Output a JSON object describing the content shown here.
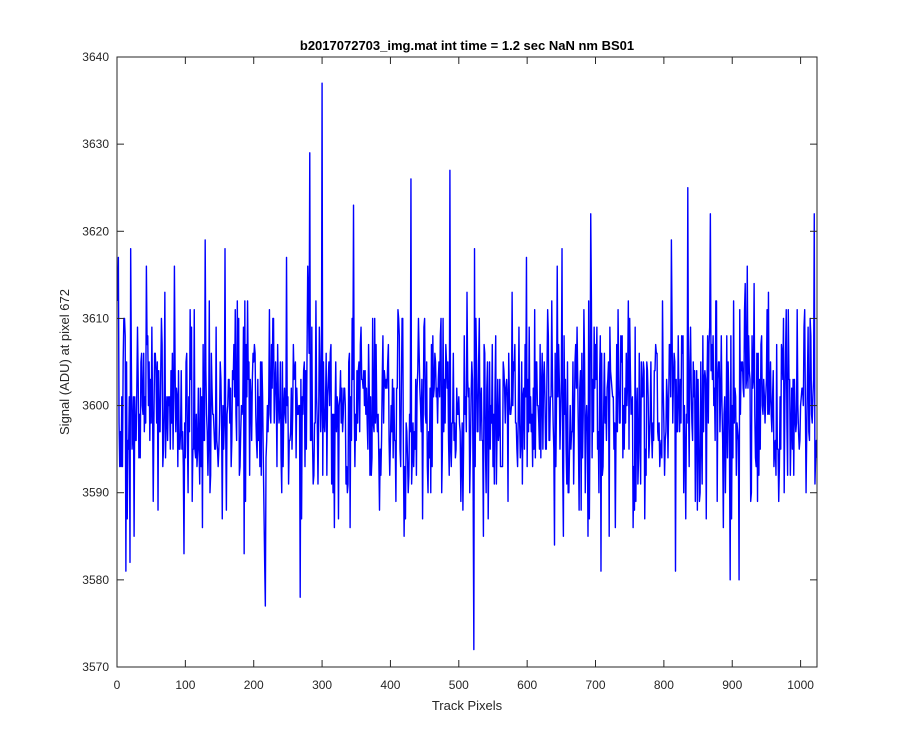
{
  "chart_data": {
    "type": "line",
    "title": "b2017072703_img.mat int time = 1.2 sec  NaN nm BS01",
    "xlabel": "Track Pixels",
    "ylabel": "Signal (ADU) at pixel 672",
    "xlim": [
      0,
      1024
    ],
    "ylim": [
      3570,
      3640
    ],
    "xticks": [
      0,
      100,
      200,
      300,
      400,
      500,
      600,
      700,
      800,
      900,
      1000
    ],
    "yticks": [
      3570,
      3580,
      3590,
      3600,
      3610,
      3620,
      3630,
      3640
    ],
    "grid": false,
    "legend": false,
    "series": [
      {
        "color": "#0000ff",
        "x_start": 1,
        "x_step": 1,
        "noise_mean": 3600,
        "noise_std": 6,
        "values_range": [
          3572,
          3637
        ],
        "highlighted_points": [
          {
            "x": 2,
            "y": 3617
          },
          {
            "x": 13,
            "y": 3581
          },
          {
            "x": 19,
            "y": 3582
          },
          {
            "x": 20,
            "y": 3618
          },
          {
            "x": 98,
            "y": 3583
          },
          {
            "x": 158,
            "y": 3618
          },
          {
            "x": 217,
            "y": 3577
          },
          {
            "x": 268,
            "y": 3578
          },
          {
            "x": 282,
            "y": 3629
          },
          {
            "x": 300,
            "y": 3637
          },
          {
            "x": 346,
            "y": 3623
          },
          {
            "x": 420,
            "y": 3585
          },
          {
            "x": 430,
            "y": 3626
          },
          {
            "x": 487,
            "y": 3627
          },
          {
            "x": 522,
            "y": 3572
          },
          {
            "x": 640,
            "y": 3584
          },
          {
            "x": 708,
            "y": 3581
          },
          {
            "x": 817,
            "y": 3581
          },
          {
            "x": 835,
            "y": 3625
          },
          {
            "x": 868,
            "y": 3622
          },
          {
            "x": 910,
            "y": 3580
          },
          {
            "x": 1020,
            "y": 3622
          },
          {
            "x": 1024,
            "y": 3594
          }
        ]
      }
    ]
  }
}
